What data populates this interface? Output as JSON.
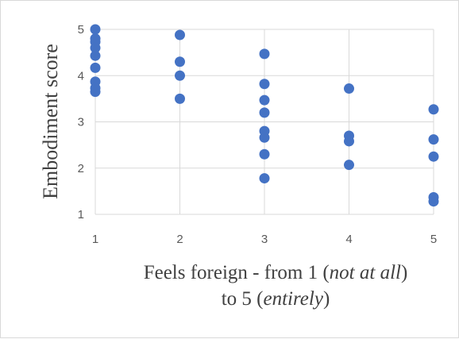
{
  "chart_data": {
    "type": "scatter",
    "title": "",
    "ylabel": "Embodiment score",
    "xlabel": {
      "line1_prefix": "Feels foreign - from 1 (",
      "line1_italic": "not at all",
      "line1_suffix": ")",
      "line2_prefix": "to 5 (",
      "line2_italic": "entirely",
      "line2_suffix": ")"
    },
    "xlim": [
      1,
      5
    ],
    "ylim": [
      1,
      5
    ],
    "x_ticks": [
      1,
      2,
      3,
      4,
      5
    ],
    "y_ticks": [
      1,
      2,
      3,
      4,
      5
    ],
    "grid": true,
    "legend": "none",
    "marker_color": "#4472c4",
    "grid_color": "#d9d9d9",
    "points": [
      {
        "x": 1,
        "y": 5.0
      },
      {
        "x": 1,
        "y": 4.8
      },
      {
        "x": 1,
        "y": 4.73
      },
      {
        "x": 1,
        "y": 4.6
      },
      {
        "x": 1,
        "y": 4.43
      },
      {
        "x": 1,
        "y": 4.17
      },
      {
        "x": 1,
        "y": 3.87
      },
      {
        "x": 1,
        "y": 3.73
      },
      {
        "x": 1,
        "y": 3.65
      },
      {
        "x": 2,
        "y": 4.88
      },
      {
        "x": 2,
        "y": 4.3
      },
      {
        "x": 2,
        "y": 4.0
      },
      {
        "x": 2,
        "y": 3.5
      },
      {
        "x": 3,
        "y": 4.47
      },
      {
        "x": 3,
        "y": 3.82
      },
      {
        "x": 3,
        "y": 3.47
      },
      {
        "x": 3,
        "y": 3.2
      },
      {
        "x": 3,
        "y": 2.8
      },
      {
        "x": 3,
        "y": 2.66
      },
      {
        "x": 3,
        "y": 2.3
      },
      {
        "x": 3,
        "y": 1.78
      },
      {
        "x": 4,
        "y": 3.72
      },
      {
        "x": 4,
        "y": 2.7
      },
      {
        "x": 4,
        "y": 2.58
      },
      {
        "x": 4,
        "y": 2.07
      },
      {
        "x": 5,
        "y": 3.27
      },
      {
        "x": 5,
        "y": 2.62
      },
      {
        "x": 5,
        "y": 2.25
      },
      {
        "x": 5,
        "y": 1.37
      },
      {
        "x": 5,
        "y": 1.28
      }
    ]
  }
}
